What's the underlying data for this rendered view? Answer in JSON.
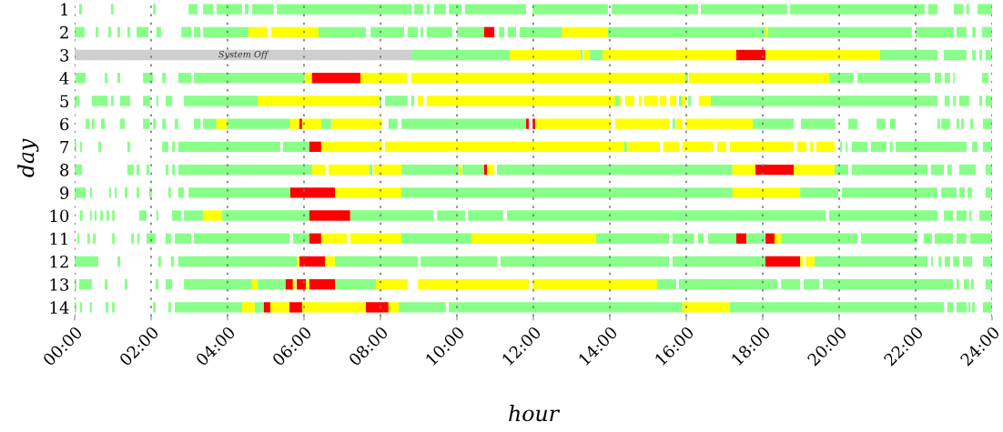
{
  "chart_data": {
    "type": "bar",
    "orientation": "horizontal",
    "xlabel": "hour",
    "ylabel": "day",
    "grid": "x",
    "categories": [
      "1",
      "2",
      "3",
      "4",
      "5",
      "6",
      "7",
      "8",
      "9",
      "10",
      "11",
      "12",
      "13",
      "14"
    ],
    "xlim": [
      0,
      24
    ],
    "xticks": [
      {
        "value": 0,
        "label": "00:00"
      },
      {
        "value": 2,
        "label": "02:00"
      },
      {
        "value": 4,
        "label": "04:00"
      },
      {
        "value": 6,
        "label": "06:00"
      },
      {
        "value": 8,
        "label": "08:00"
      },
      {
        "value": 10,
        "label": "10:00"
      },
      {
        "value": 12,
        "label": "12:00"
      },
      {
        "value": 14,
        "label": "14:00"
      },
      {
        "value": 16,
        "label": "16:00"
      },
      {
        "value": 18,
        "label": "18:00"
      },
      {
        "value": 20,
        "label": "20:00"
      },
      {
        "value": 22,
        "label": "22:00"
      },
      {
        "value": 24,
        "label": "24:00"
      }
    ],
    "series": [
      {
        "base": [
          0.12,
          0,
          0,
          0.02,
          0,
          0.29,
          0,
          0,
          0,
          0.14,
          0.07,
          0,
          0,
          0
        ],
        "values": [
          0.07,
          0.26,
          8.81,
          0.27,
          0.12,
          0.09,
          0.05,
          0.19,
          0.29,
          0.07,
          0.05,
          0.62,
          0.05,
          0.05
        ],
        "colors": [
          "#88ff88",
          "#88ff88",
          "#cfcfcf",
          "#88ff88",
          "#88ff88",
          "#88ff88",
          "#88ff88",
          "#88ff88",
          "#88ff88",
          "#88ff88",
          "#88ff88",
          "#88ff88",
          "#88ff88",
          "#88ff88"
        ],
        "value_labels": [
          null,
          null,
          "System Off",
          null,
          null,
          null,
          null,
          null,
          null,
          null,
          null,
          null,
          null,
          null
        ]
      },
      {
        "base": [
          0.95,
          0.55,
          8.81,
          0.79,
          0.45,
          0.45,
          0.14,
          1.38,
          0.4,
          0.4,
          0.33,
          1.12,
          0.12,
          0.14
        ],
        "values": [
          0.07,
          0.07,
          2.57,
          0.07,
          0.41,
          0.07,
          0.05,
          0.17,
          0.05,
          0.05,
          0.07,
          0.07,
          0.33,
          0.05
        ],
        "colors": [
          "#88ff88",
          "#88ff88",
          "#88ff88",
          "#88ff88",
          "#88ff88",
          "#88ff88",
          "#88ff88",
          "#88ff88",
          "#88ff88",
          "#88ff88",
          "#88ff88",
          "#88ff88",
          "#88ff88",
          "#88ff88"
        ]
      },
      {
        "base": [
          2.05,
          0.88,
          11.38,
          1.12,
          0.95,
          0.69,
          0.62,
          1.62,
          0.9,
          0.52,
          0.48,
          2.19,
          0.79,
          0.4
        ],
        "values": [
          0.07,
          0.07,
          1.86,
          0.07,
          0.07,
          0.1,
          0.07,
          0.07,
          0.05,
          0.05,
          0.07,
          0.07,
          0.07,
          0.05
        ],
        "colors": [
          "#88ff88",
          "#88ff88",
          "#ffff00",
          "#88ff88",
          "#88ff88",
          "#88ff88",
          "#88ff88",
          "#88ff88",
          "#88ff88",
          "#88ff88",
          "#88ff88",
          "#88ff88",
          "#88ff88",
          "#88ff88"
        ]
      },
      {
        "base": [
          2.98,
          1.12,
          13.24,
          1.79,
          1.19,
          1.19,
          1.38,
          1.88,
          1.05,
          0.67,
          0.98,
          2.52,
          1.31,
          0.81
        ],
        "values": [
          0.23,
          0.07,
          0.05,
          0.26,
          0.26,
          0.12,
          0.07,
          0.07,
          0.05,
          0.07,
          0.07,
          0.08,
          0.07,
          0.07
        ],
        "colors": [
          "#88ff88",
          "#88ff88",
          "#88ff88",
          "#88ff88",
          "#88ff88",
          "#88ff88",
          "#88ff88",
          "#88ff88",
          "#88ff88",
          "#88ff88",
          "#88ff88",
          "#88ff88",
          "#88ff88",
          "#88ff88"
        ]
      },
      {
        "base": [
          3.36,
          1.38,
          13.31,
          2.29,
          1.79,
          1.79,
          2.29,
          2.38,
          1.31,
          0.83,
          1.48,
          2.71,
          2.12,
          0.98
        ],
        "values": [
          0.26,
          0.07,
          0.17,
          0.09,
          0.19,
          0.16,
          0.16,
          0.07,
          0.07,
          0.07,
          0.07,
          3.1,
          0.07,
          0.07
        ],
        "colors": [
          "#88ff88",
          "#88ff88",
          "#ffff00",
          "#88ff88",
          "#88ff88",
          "#88ff88",
          "#88ff88",
          "#88ff88",
          "#88ff88",
          "#88ff88",
          "#88ff88",
          "#88ff88",
          "#88ff88",
          "#88ff88"
        ]
      },
      {
        "base": [
          3.71,
          1.62,
          13.48,
          2.71,
          2.14,
          2.05,
          2.55,
          2.55,
          1.62,
          0.98,
          1.64,
          5.81,
          2.38,
          2.05
        ],
        "values": [
          0.67,
          0.31,
          0.33,
          0.34,
          0.05,
          0.07,
          0.07,
          0.07,
          0.07,
          0.07,
          0.05,
          0.07,
          0.17,
          0.07
        ],
        "colors": [
          "#88ff88",
          "#88ff88",
          "#88ff88",
          "#88ff88",
          "#88ff88",
          "#88ff88",
          "#88ff88",
          "#88ff88",
          "#88ff88",
          "#88ff88",
          "#88ff88",
          "#ffff00",
          "#88ff88",
          "#88ff88"
        ]
      },
      {
        "base": [
          4.45,
          2.14,
          13.81,
          3.12,
          2.38,
          2.29,
          2.71,
          2.71,
          1.95,
          1.69,
          1.88,
          5.88,
          2.86,
          2.45
        ],
        "values": [
          0.1,
          0.12,
          3.5,
          2.9,
          0.17,
          0.09,
          2.67,
          3.5,
          0.07,
          0.19,
          0.24,
          0.67,
          1.78,
          0.07
        ],
        "colors": [
          "#88ff88",
          "#88ff88",
          "#ffff00",
          "#88ff88",
          "#88ff88",
          "#88ff88",
          "#88ff88",
          "#88ff88",
          "#88ff88",
          "#88ff88",
          "#88ff88",
          "#ff0000",
          "#88ff88",
          "#88ff88"
        ]
      },
      {
        "base": [
          4.64,
          2.79,
          17.31,
          6.02,
          2.86,
          2.62,
          5.45,
          6.21,
          2.45,
          2.14,
          2.38,
          6.55,
          4.64,
          2.62
        ],
        "values": [
          0.57,
          0.26,
          0.76,
          0.19,
          1.93,
          0.09,
          0.69,
          0.34,
          0.07,
          0.05,
          0.14,
          0.26,
          0.15,
          1.76
        ],
        "colors": [
          "#88ff88",
          "#88ff88",
          "#ff0000",
          "#ffff00",
          "#88ff88",
          "#88ff88",
          "#88ff88",
          "#ffff00",
          "#88ff88",
          "#88ff88",
          "#88ff88",
          "#ffff00",
          "#ffff00",
          "#88ff88"
        ]
      },
      {
        "base": [
          5.29,
          3.12,
          18.07,
          6.21,
          4.79,
          3.12,
          6.14,
          6.64,
          2.71,
          2.55,
          2.62,
          6.81,
          4.79,
          4.38
        ],
        "values": [
          3.52,
          0.17,
          3.0,
          1.27,
          3.19,
          0.17,
          0.31,
          1.07,
          0.15,
          0.24,
          0.43,
          2.17,
          0.73,
          0.33
        ],
        "colors": [
          "#88ff88",
          "#88ff88",
          "#ffff00",
          "#ff0000",
          "#ffff00",
          "#88ff88",
          "#ff0000",
          "#ffff00",
          "#88ff88",
          "#88ff88",
          "#88ff88",
          "#88ff88",
          "#88ff88",
          "#ffff00"
        ]
      },
      {
        "base": [
          8.88,
          3.36,
          21.07,
          7.48,
          7.98,
          3.36,
          6.45,
          7.71,
          2.98,
          2.86,
          3.12,
          9.05,
          5.52,
          4.71
        ],
        "values": [
          0.24,
          1.19,
          1.5,
          1.23,
          0.04,
          0.35,
          1.6,
          0.08,
          2.66,
          0.5,
          2.5,
          2.0,
          0.19,
          0.24
        ],
        "colors": [
          "#88ff88",
          "#88ff88",
          "#88ff88",
          "#ffff00",
          "#88ff88",
          "#88ff88",
          "#ffff00",
          "#88ff88",
          "#88ff88",
          "#88ff88",
          "#88ff88",
          "#88ff88",
          "#ff0000",
          "#88ff88"
        ]
      },
      {
        "base": [
          9.21,
          4.55,
          22.74,
          8.81,
          8.12,
          3.71,
          8.12,
          7.81,
          5.64,
          3.36,
          5.71,
          11.14,
          5.71,
          4.95
        ],
        "values": [
          0.08,
          0.5,
          0.59,
          7.17,
          0.59,
          0.27,
          6.26,
          0.74,
          1.17,
          0.5,
          0.43,
          4.41,
          0.08,
          0.17
        ],
        "colors": [
          "#88ff88",
          "#ffff00",
          "#88ff88",
          "#ffff00",
          "#88ff88",
          "#ffff00",
          "#ffff00",
          "#ffff00",
          "#ff0000",
          "#ffff00",
          "#88ff88",
          "#88ff88",
          "#ffff00",
          "#ff0000"
        ]
      },
      {
        "base": [
          9.4,
          5.14,
          23.48,
          15.98,
          8.81,
          3.98,
          14.38,
          8.55,
          6.81,
          3.86,
          6.14,
          15.64,
          5.81,
          5.12
        ],
        "values": [
          0.31,
          1.24,
          0.09,
          0.07,
          0.07,
          1.64,
          0.07,
          1.5,
          1.74,
          2.28,
          0.31,
          2.43,
          0.24,
          0.5
        ],
        "colors": [
          "#88ff88",
          "#ffff00",
          "#88ff88",
          "#88ff88",
          "#88ff88",
          "#88ff88",
          "#88ff88",
          "#88ff88",
          "#ffff00",
          "#88ff88",
          "#ff0000",
          "#88ff88",
          "#ff0000",
          "#ffff00"
        ]
      },
      {
        "base": [
          9.79,
          6.38,
          23.67,
          16.07,
          8.98,
          5.62,
          14.48,
          10.05,
          8.55,
          6.14,
          6.45,
          18.07,
          6.05,
          5.62
        ],
        "values": [
          0.33,
          1.24,
          0.07,
          3.67,
          0.14,
          0.26,
          0.83,
          0.07,
          8.66,
          1.07,
          0.67,
          0.91,
          0.09,
          0.33
        ],
        "colors": [
          "#88ff88",
          "#88ff88",
          "#88ff88",
          "#ffff00",
          "#ffff00",
          "#ffff00",
          "#ffff00",
          "#ffff00",
          "#88ff88",
          "#ff0000",
          "#ffff00",
          "#ff0000",
          "#ffff00",
          "#ff0000"
        ]
      },
      {
        "base": [
          10.21,
          7.74,
          23.83,
          19.74,
          9.21,
          5.88,
          15.4,
          10.14,
          17.21,
          7.21,
          7.21,
          18.98,
          6.14,
          5.95
        ],
        "values": [
          1.6,
          0.88,
          0.17,
          0.64,
          4.93,
          0.07,
          0.41,
          0.57,
          1.77,
          2.17,
          1.34,
          0.07,
          0.67,
          1.67
        ],
        "colors": [
          "#88ff88",
          "#88ff88",
          "#88ff88",
          "#88ff88",
          "#ffff00",
          "#ff0000",
          "#ffff00",
          "#88ff88",
          "#ffff00",
          "#88ff88",
          "#ffff00",
          "#ffff00",
          "#ff0000",
          "#ffff00"
        ]
      },
      {
        "base": [
          11.98,
          8.71,
          null,
          20.48,
          14.14,
          5.95,
          15.9,
          10.71,
          18.98,
          9.48,
          8.55,
          19.12,
          6.81,
          7.62
        ],
        "values": [
          1.97,
          0.27,
          null,
          1.9,
          0.1,
          0.5,
          0.81,
          0.08,
          1.0,
          0.73,
          1.83,
          0.24,
          1.07,
          0.59
        ],
        "colors": [
          "#88ff88",
          "#88ff88",
          null,
          "#88ff88",
          "#88ff88",
          "#ffff00",
          "#ffff00",
          "#ff0000",
          "#88ff88",
          "#88ff88",
          "#88ff88",
          "#ffff00",
          "#88ff88",
          "#ff0000"
        ]
      },
      {
        "base": [
          14.05,
          9.05,
          null,
          22.5,
          14.24,
          6.45,
          16.81,
          10.79,
          20.07,
          10.29,
          10.38,
          19.36,
          7.88,
          8.21
        ],
        "values": [
          2.26,
          0.07,
          null,
          0.17,
          0.07,
          0.26,
          0.24,
          0.19,
          2.5,
          0.92,
          3.26,
          2.95,
          0.83,
          0.27
        ],
        "colors": [
          "#88ff88",
          "#88ff88",
          null,
          "#88ff88",
          "#ffff00",
          "#88ff88",
          "#ffff00",
          "#ffff00",
          "#88ff88",
          "#88ff88",
          "#ffff00",
          "#88ff88",
          "#ffff00",
          "#ffff00"
        ]
      },
      {
        "base": [
          16.38,
          9.21,
          null,
          22.76,
          14.4,
          6.71,
          17.14,
          11.05,
          22.67,
          11.31,
          13.64,
          22.4,
          8.98,
          8.48
        ],
        "values": [
          2.26,
          0.67,
          null,
          0.14,
          0.24,
          1.34,
          1.67,
          6.16,
          0.4,
          8.33,
          1.91,
          0.05,
          2.9,
          1.23
        ],
        "colors": [
          "#88ff88",
          "#88ff88",
          null,
          "#88ff88",
          "#ffff00",
          "#ffff00",
          "#ffff00",
          "#88ff88",
          "#88ff88",
          "#88ff88",
          "#88ff88",
          "#88ff88",
          "#ffff00",
          "#88ff88"
        ]
      },
      {
        "base": [
          18.71,
          10.0,
          null,
          22.98,
          14.76,
          8.21,
          18.9,
          17.21,
          23.14,
          19.74,
          15.64,
          22.6,
          11.98,
          9.79
        ],
        "values": [
          3.53,
          0.71,
          null,
          0.04,
          0.07,
          0.24,
          0.24,
          0.6,
          0.15,
          2.83,
          0.57,
          0.07,
          3.26,
          6.11
        ],
        "colors": [
          "#88ff88",
          "#88ff88",
          null,
          "#88ff88",
          "#ffff00",
          "#88ff88",
          "#ffff00",
          "#ffff00",
          "#88ff88",
          "#88ff88",
          "#88ff88",
          "#88ff88",
          "#ffff00",
          "#88ff88"
        ]
      },
      {
        "base": [
          22.33,
          10.71,
          null,
          23.74,
          14.9,
          8.55,
          19.24,
          17.81,
          23.36,
          22.74,
          16.31,
          22.76,
          15.24,
          15.9
        ],
        "values": [
          0.24,
          0.27,
          null,
          0.16,
          0.34,
          3.26,
          0.07,
          1.0,
          0.12,
          0.24,
          0.14,
          0.14,
          0.5,
          1.24
        ],
        "colors": [
          "#88ff88",
          "#ff0000",
          null,
          "#88ff88",
          "#ffff00",
          "#88ff88",
          "#ffff00",
          "#ff0000",
          "#88ff88",
          "#88ff88",
          "#88ff88",
          "#88ff88",
          "#88ff88",
          "#ffff00"
        ]
      },
      {
        "base": [
          23.0,
          11.1,
          null,
          null,
          15.3,
          11.81,
          19.4,
          18.81,
          23.83,
          23.07,
          16.57,
          22.98,
          15.81,
          17.14
        ],
        "values": [
          0.24,
          0.14,
          null,
          null,
          0.18,
          0.07,
          0.48,
          1.07,
          0.17,
          0.26,
          0.74,
          0.16,
          2.57,
          5.6
        ],
        "colors": [
          "#88ff88",
          "#88ff88",
          null,
          null,
          "#ffff00",
          "#ff0000",
          "#ffff00",
          "#ffff00",
          "#88ff88",
          "#88ff88",
          "#88ff88",
          "#88ff88",
          "#88ff88",
          "#88ff88"
        ]
      },
      {
        "base": [
          23.33,
          11.33,
          null,
          null,
          15.57,
          11.98,
          20.02,
          19.88,
          null,
          23.4,
          17.31,
          23.24,
          18.48,
          22.83
        ],
        "values": [
          0.07,
          0.22,
          null,
          null,
          0.17,
          0.07,
          0.05,
          0.36,
          null,
          0.05,
          0.26,
          0.24,
          0.5,
          0.15
        ],
        "colors": [
          "#88ff88",
          "#88ff88",
          null,
          null,
          "#ffff00",
          "#ff0000",
          "#88ff88",
          "#88ff88",
          null,
          "#88ff88",
          "#ff0000",
          "#88ff88",
          "#88ff88",
          "#88ff88"
        ]
      },
      {
        "base": [
          23.62,
          11.64,
          null,
          null,
          15.81,
          12.05,
          20.17,
          20.33,
          null,
          23.67,
          17.57,
          23.76,
          19.07,
          23.07
        ],
        "values": [
          0.38,
          1.1,
          null,
          null,
          0.07,
          2.0,
          0.04,
          1.98,
          null,
          0.33,
          0.48,
          0.24,
          0.41,
          0.26
        ],
        "colors": [
          "#88ff88",
          "#88ff88",
          null,
          null,
          "#88ff88",
          "#ffff00",
          "#88ff88",
          "#88ff88",
          null,
          "#88ff88",
          "#88ff88",
          "#88ff88",
          "#88ff88",
          "#88ff88"
        ]
      },
      {
        "base": [
          null,
          12.74,
          null,
          null,
          15.88,
          14.14,
          20.33,
          22.4,
          null,
          null,
          18.07,
          null,
          19.57,
          23.38
        ],
        "values": [
          null,
          1.21,
          null,
          null,
          0.12,
          1.41,
          0.41,
          0.34,
          null,
          null,
          0.24,
          null,
          3.41,
          0.05
        ],
        "colors": [
          null,
          "#ffff00",
          null,
          null,
          "#ffff00",
          "#ffff00",
          "#88ff88",
          "#88ff88",
          null,
          null,
          "#ff0000",
          null,
          "#88ff88",
          "#88ff88"
        ]
      },
      {
        "base": [
          null,
          13.95,
          null,
          null,
          16.05,
          15.64,
          20.83,
          22.83,
          null,
          null,
          18.31,
          null,
          23.07,
          23.48
        ],
        "values": [
          null,
          4.12,
          null,
          null,
          0.07,
          0.07,
          0.41,
          0.12,
          null,
          null,
          0.17,
          null,
          0.07,
          0.07
        ],
        "colors": [
          null,
          "#88ff88",
          null,
          null,
          "#88ff88",
          "#88ff88",
          "#88ff88",
          "#88ff88",
          null,
          null,
          "#ffff00",
          null,
          "#88ff88",
          "#88ff88"
        ]
      },
      {
        "base": [
          null,
          18.07,
          null,
          null,
          16.33,
          15.74,
          21.33,
          23.14,
          null,
          null,
          18.48,
          null,
          23.26,
          23.76
        ],
        "values": [
          null,
          0.07,
          null,
          null,
          0.31,
          0.16,
          0.07,
          0.43,
          null,
          null,
          2.0,
          null,
          0.14,
          0.24
        ],
        "colors": [
          null,
          "#ffff00",
          null,
          null,
          "#ffff00",
          "#ffff00",
          "#88ff88",
          "#88ff88",
          null,
          null,
          "#88ff88",
          null,
          "#88ff88",
          "#88ff88"
        ]
      },
      {
        "base": [
          null,
          18.14,
          null,
          null,
          16.64,
          15.98,
          21.48,
          23.83,
          null,
          null,
          20.57,
          null,
          23.45,
          null
        ],
        "values": [
          null,
          3.76,
          null,
          null,
          5.93,
          1.76,
          1.85,
          0.17,
          null,
          null,
          1.48,
          null,
          0.07,
          null
        ],
        "colors": [
          null,
          "#88ff88",
          null,
          null,
          "#88ff88",
          "#ffff00",
          "#88ff88",
          "#88ff88",
          null,
          null,
          "#88ff88",
          null,
          "#88ff88",
          null
        ]
      },
      {
        "base": [
          null,
          22.0,
          null,
          null,
          22.76,
          17.74,
          23.48,
          null,
          null,
          null,
          22.21,
          null,
          23.83,
          null
        ],
        "values": [
          null,
          1.0,
          null,
          null,
          0.12,
          1.07,
          0.14,
          null,
          null,
          null,
          0.22,
          null,
          0.17,
          null
        ],
        "colors": [
          null,
          "#88ff88",
          null,
          null,
          "#88ff88",
          "#88ff88",
          "#88ff88",
          null,
          null,
          null,
          "#88ff88",
          null,
          "#88ff88",
          null
        ]
      },
      {
        "base": [
          null,
          23.07,
          null,
          null,
          22.98,
          19.0,
          23.76,
          null,
          null,
          null,
          22.5,
          null,
          null,
          null
        ],
        "values": [
          null,
          0.26,
          null,
          null,
          0.07,
          0.9,
          0.24,
          null,
          null,
          null,
          0.48,
          null,
          null,
          null
        ],
        "colors": [
          null,
          "#88ff88",
          null,
          null,
          "#88ff88",
          "#88ff88",
          "#88ff88",
          null,
          null,
          null,
          "#88ff88",
          null,
          null,
          null
        ]
      },
      {
        "base": [
          null,
          23.48,
          null,
          null,
          23.14,
          20.24,
          null,
          null,
          null,
          null,
          23.07,
          null,
          null,
          null
        ],
        "values": [
          null,
          0.09,
          null,
          null,
          0.26,
          0.24,
          null,
          null,
          null,
          null,
          0.26,
          null,
          null,
          null
        ],
        "colors": [
          null,
          "#88ff88",
          null,
          null,
          "#88ff88",
          "#88ff88",
          null,
          null,
          null,
          null,
          "#88ff88",
          null,
          null,
          null
        ]
      },
      {
        "base": [
          null,
          23.74,
          null,
          null,
          23.67,
          20.98,
          null,
          null,
          null,
          null,
          23.43,
          null,
          null,
          null
        ],
        "values": [
          null,
          0.26,
          null,
          null,
          0.07,
          0.23,
          null,
          null,
          null,
          null,
          0.57,
          null,
          null,
          null
        ],
        "colors": [
          null,
          "#88ff88",
          null,
          null,
          "#88ff88",
          "#88ff88",
          null,
          null,
          null,
          null,
          "#88ff88",
          null,
          null,
          null
        ]
      },
      {
        "base": [
          null,
          null,
          null,
          null,
          23.83,
          21.33,
          null,
          null,
          null,
          null,
          null,
          null,
          null,
          null
        ],
        "values": [
          null,
          null,
          null,
          null,
          0.17,
          0.15,
          null,
          null,
          null,
          null,
          null,
          null,
          null,
          null
        ],
        "colors": [
          null,
          null,
          null,
          null,
          "#88ff88",
          "#88ff88",
          null,
          null,
          null,
          null,
          null,
          null,
          null,
          null
        ]
      },
      {
        "base": [
          null,
          null,
          null,
          null,
          null,
          22.57,
          null,
          null,
          null,
          null,
          null,
          null,
          null,
          null
        ],
        "values": [
          null,
          null,
          null,
          null,
          null,
          0.07,
          null,
          null,
          null,
          null,
          null,
          null,
          null,
          null
        ],
        "colors": [
          null,
          null,
          null,
          null,
          null,
          "#88ff88",
          null,
          null,
          null,
          null,
          null,
          null,
          null,
          null
        ]
      },
      {
        "base": [
          null,
          null,
          null,
          null,
          null,
          22.67,
          null,
          null,
          null,
          null,
          null,
          null,
          null,
          null
        ],
        "values": [
          null,
          null,
          null,
          null,
          null,
          0.23,
          null,
          null,
          null,
          null,
          null,
          null,
          null,
          null
        ],
        "colors": [
          null,
          null,
          null,
          null,
          null,
          "#88ff88",
          null,
          null,
          null,
          null,
          null,
          null,
          null,
          null
        ]
      },
      {
        "base": [
          null,
          null,
          null,
          null,
          null,
          23.07,
          null,
          null,
          null,
          null,
          null,
          null,
          null,
          null
        ],
        "values": [
          null,
          null,
          null,
          null,
          null,
          0.07,
          null,
          null,
          null,
          null,
          null,
          null,
          null,
          null
        ],
        "colors": [
          null,
          null,
          null,
          null,
          null,
          "#88ff88",
          null,
          null,
          null,
          null,
          null,
          null,
          null,
          null
        ]
      },
      {
        "base": [
          null,
          null,
          null,
          null,
          null,
          23.19,
          null,
          null,
          null,
          null,
          null,
          null,
          null,
          null
        ],
        "values": [
          null,
          null,
          null,
          null,
          null,
          0.07,
          null,
          null,
          null,
          null,
          null,
          null,
          null,
          null
        ],
        "colors": [
          null,
          null,
          null,
          null,
          null,
          "#88ff88",
          null,
          null,
          null,
          null,
          null,
          null,
          null,
          null
        ]
      },
      {
        "base": [
          null,
          null,
          null,
          null,
          null,
          23.43,
          null,
          null,
          null,
          null,
          null,
          null,
          null,
          null
        ],
        "values": [
          null,
          null,
          null,
          null,
          null,
          0.07,
          null,
          null,
          null,
          null,
          null,
          null,
          null,
          null
        ],
        "colors": [
          null,
          null,
          null,
          null,
          null,
          "#88ff88",
          null,
          null,
          null,
          null,
          null,
          null,
          null,
          null
        ]
      },
      {
        "base": [
          null,
          null,
          null,
          null,
          null,
          23.76,
          null,
          null,
          null,
          null,
          null,
          null,
          null,
          null
        ],
        "values": [
          null,
          null,
          null,
          null,
          null,
          0.24,
          null,
          null,
          null,
          null,
          null,
          null,
          null,
          null
        ],
        "colors": [
          null,
          null,
          null,
          null,
          null,
          "#88ff88",
          null,
          null,
          null,
          null,
          null,
          null,
          null,
          null
        ]
      }
    ]
  }
}
